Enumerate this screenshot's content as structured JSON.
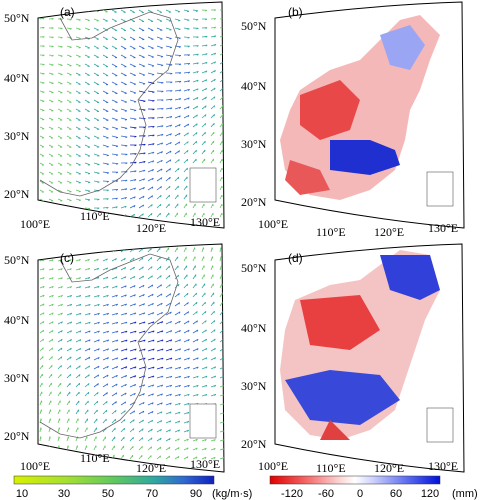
{
  "panels": [
    {
      "label": "(a)",
      "type": "wind"
    },
    {
      "label": "(b)",
      "type": "precip"
    },
    {
      "label": "(c)",
      "type": "wind"
    },
    {
      "label": "(d)",
      "type": "precip"
    }
  ],
  "lat_labels_wind": [
    "50°N",
    "40°N",
    "30°N",
    "20°N"
  ],
  "lat_labels_precip": [
    "50°N",
    "40°N",
    "30°N",
    "20°N"
  ],
  "lon_labels": [
    "100°E",
    "110°E",
    "120°E",
    "130°E"
  ],
  "colorbar_wind": {
    "ticks": [
      "10",
      "30",
      "50",
      "70",
      "90"
    ],
    "unit": "(kg/m·s)",
    "colors": [
      "#d8f000",
      "#a8e030",
      "#60c860",
      "#30a8a0",
      "#3068d0",
      "#1020c0"
    ]
  },
  "colorbar_precip": {
    "ticks": [
      "-120",
      "-60",
      "0",
      "60",
      "120"
    ],
    "unit": "(mm)",
    "colors": [
      "#e00000",
      "#f46060",
      "#fcc4c4",
      "#ffffff",
      "#c4ccfc",
      "#6070f0",
      "#0010d8"
    ]
  }
}
